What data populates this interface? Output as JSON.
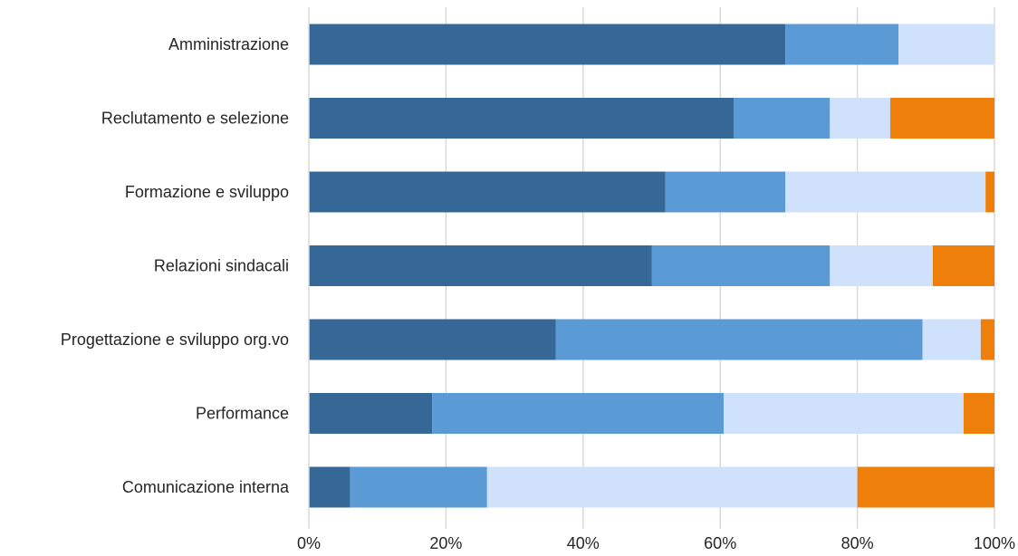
{
  "chart_data": {
    "type": "bar",
    "orientation": "horizontal",
    "stacked": "percent",
    "categories": [
      "Amministrazione",
      "Reclutamento e selezione",
      "Formazione e sviluppo",
      "Relazioni sindacali",
      "Progettazione e sviluppo org.vo",
      "Performance",
      "Comunicazione interna"
    ],
    "series": [
      {
        "color": "#356897",
        "values": [
          69.5,
          62,
          52,
          50,
          36,
          18,
          6
        ]
      },
      {
        "color": "#5b9bd5",
        "values": [
          16.5,
          14,
          17.5,
          26,
          53.5,
          42.5,
          20
        ]
      },
      {
        "color": "#cfe1fb",
        "values": [
          14,
          8.8,
          29.2,
          15,
          8.5,
          35,
          54
        ]
      },
      {
        "color": "#ef7f0b",
        "values": [
          0,
          15.2,
          1.3,
          9,
          2,
          4.5,
          20
        ]
      }
    ],
    "xlim": [
      0,
      100
    ],
    "x_ticks": [
      "0%",
      "20%",
      "40%",
      "60%",
      "80%",
      "100%"
    ],
    "x_tick_values": [
      0,
      20,
      40,
      60,
      80,
      100
    ],
    "grid": true,
    "legend": "none",
    "title": "",
    "xlabel": "",
    "ylabel": ""
  }
}
